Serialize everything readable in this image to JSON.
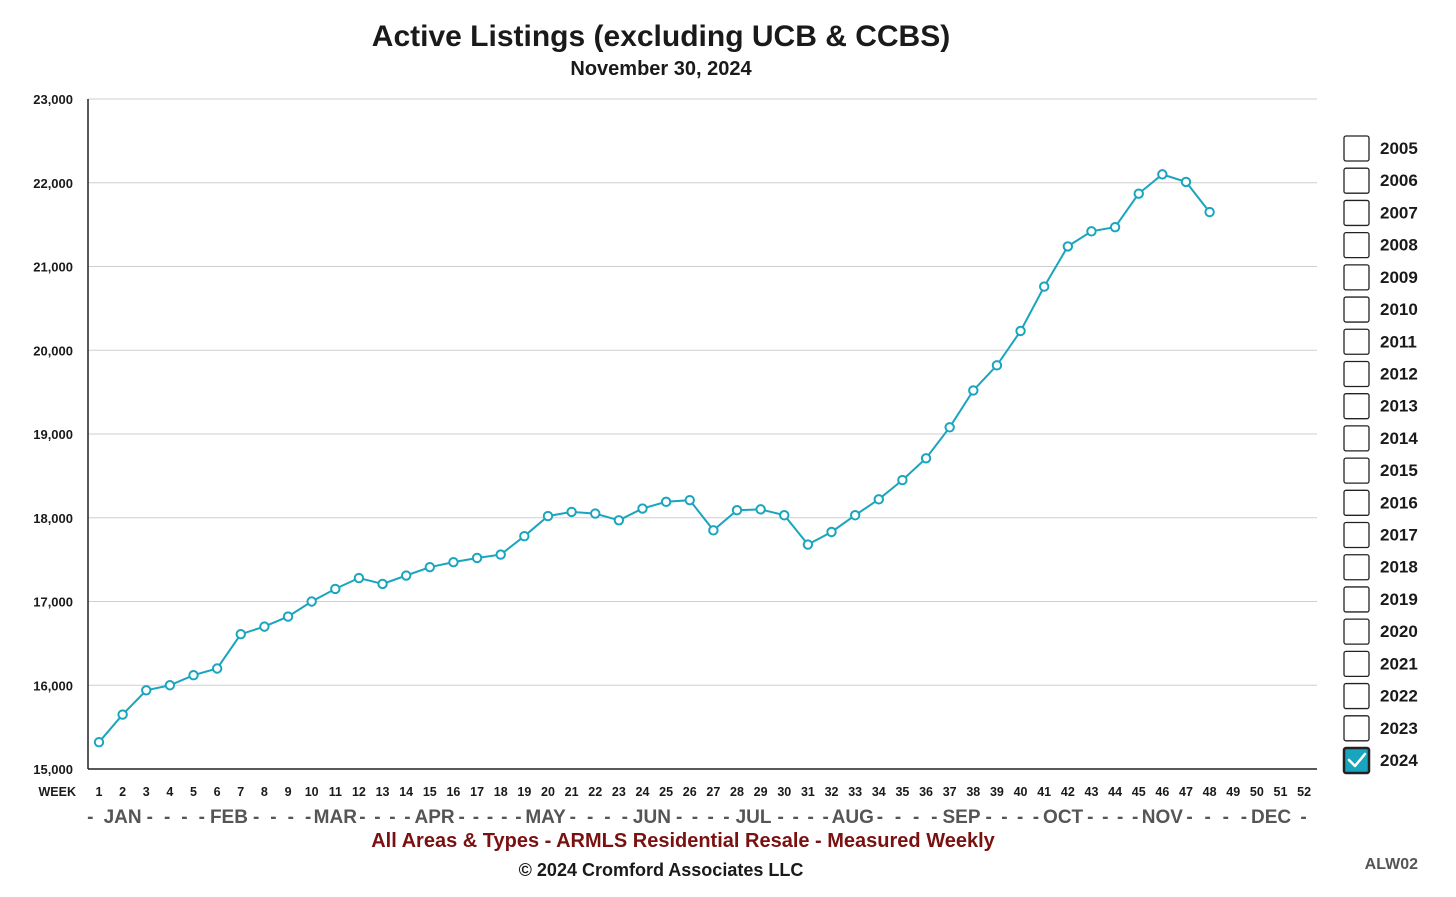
{
  "chart_data": {
    "type": "line",
    "title": "Active Listings (excluding UCB & CCBS)",
    "subtitle": "November 30, 2024",
    "xlabel": "WEEK",
    "ylabel": "",
    "ylim": [
      15000,
      23000
    ],
    "yticks": [
      15000,
      16000,
      17000,
      18000,
      19000,
      20000,
      21000,
      22000,
      23000
    ],
    "ytick_labels": [
      "15,000",
      "16,000",
      "17,000",
      "18,000",
      "19,000",
      "20,000",
      "21,000",
      "22,000",
      "23,000"
    ],
    "xlim": [
      1,
      52
    ],
    "x_weeks": [
      1,
      2,
      3,
      4,
      5,
      6,
      7,
      8,
      9,
      10,
      11,
      12,
      13,
      14,
      15,
      16,
      17,
      18,
      19,
      20,
      21,
      22,
      23,
      24,
      25,
      26,
      27,
      28,
      29,
      30,
      31,
      32,
      33,
      34,
      35,
      36,
      37,
      38,
      39,
      40,
      41,
      42,
      43,
      44,
      45,
      46,
      47,
      48,
      49,
      50,
      51,
      52
    ],
    "months": [
      {
        "label": "JAN",
        "center_week": 2
      },
      {
        "label": "FEB",
        "center_week": 6.5
      },
      {
        "label": "MAR",
        "center_week": 11
      },
      {
        "label": "APR",
        "center_week": 15.2
      },
      {
        "label": "MAY",
        "center_week": 19.9
      },
      {
        "label": "JUN",
        "center_week": 24.4
      },
      {
        "label": "JUL",
        "center_week": 28.7
      },
      {
        "label": "AUG",
        "center_week": 32.9
      },
      {
        "label": "SEP",
        "center_week": 37.5
      },
      {
        "label": "OCT",
        "center_week": 41.8
      },
      {
        "label": "NOV",
        "center_week": 46
      },
      {
        "label": "DEC",
        "center_week": 50.6
      }
    ],
    "month_separator_text": "- - - - - -",
    "grid": true,
    "legend_position": "right",
    "series": [
      {
        "name": "2024",
        "color": "#1aa5bf",
        "x": [
          1,
          2,
          3,
          4,
          5,
          6,
          7,
          8,
          9,
          10,
          11,
          12,
          13,
          14,
          15,
          16,
          17,
          18,
          19,
          20,
          21,
          22,
          23,
          24,
          25,
          26,
          27,
          28,
          29,
          30,
          31,
          32,
          33,
          34,
          35,
          36,
          37,
          38,
          39,
          40,
          41,
          42,
          43,
          44,
          45,
          46,
          47,
          48
        ],
        "values": [
          15320,
          15650,
          15940,
          16000,
          16120,
          16200,
          16610,
          16700,
          16820,
          17000,
          17150,
          17280,
          17210,
          17310,
          17410,
          17470,
          17520,
          17560,
          17780,
          18020,
          18070,
          18050,
          17970,
          18110,
          18190,
          18210,
          17850,
          18090,
          18100,
          18030,
          17680,
          17830,
          18030,
          18220,
          18450,
          18710,
          19080,
          19520,
          19820,
          20230,
          20760,
          21240,
          21420,
          21470,
          21870,
          22100,
          22010,
          21650
        ]
      }
    ]
  },
  "legend": {
    "years": [
      "2005",
      "2006",
      "2007",
      "2008",
      "2009",
      "2010",
      "2011",
      "2012",
      "2013",
      "2014",
      "2015",
      "2016",
      "2017",
      "2018",
      "2019",
      "2020",
      "2021",
      "2022",
      "2023",
      "2024"
    ],
    "checked": [
      "2024"
    ],
    "checked_color": "#1aa5bf",
    "checkmark": "✓"
  },
  "footer": {
    "description": "All Areas & Types - ARMLS Residential Resale - Measured Weekly",
    "copyright": "© 2024 Cromford Associates LLC",
    "code": "ALW02"
  }
}
